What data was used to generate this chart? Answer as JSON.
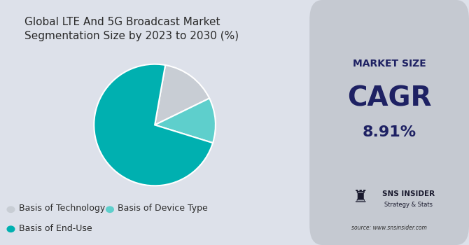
{
  "title": "Global LTE And 5G Broadcast Market\nSegmentation Size by 2023 to 2030 (%)",
  "pie_values": [
    15,
    12,
    73
  ],
  "pie_colors": [
    "#c8cdd4",
    "#5ecfcc",
    "#00b0b0"
  ],
  "pie_labels": [
    "Basis of Technology",
    "Basis of Device Type",
    "Basis of End-Use"
  ],
  "legend_colors": [
    "#c8cdd4",
    "#5ecfcc",
    "#00b0b0"
  ],
  "legend_labels": [
    "Basis of Technology",
    "Basis of Device Type",
    "Basis of End-Use"
  ],
  "left_bg": "#dde1ea",
  "right_bg": "#c5c9d1",
  "market_size_label": "MARKET SIZE",
  "cagr_label": "CAGR",
  "cagr_value": "8.91%",
  "dark_navy": "#1e2163",
  "source_text": "source: www.snsinsider.com",
  "sns_text": "SNS INSIDER",
  "sns_sub": "Strategy & Stats",
  "title_fontsize": 11,
  "legend_fontsize": 9
}
